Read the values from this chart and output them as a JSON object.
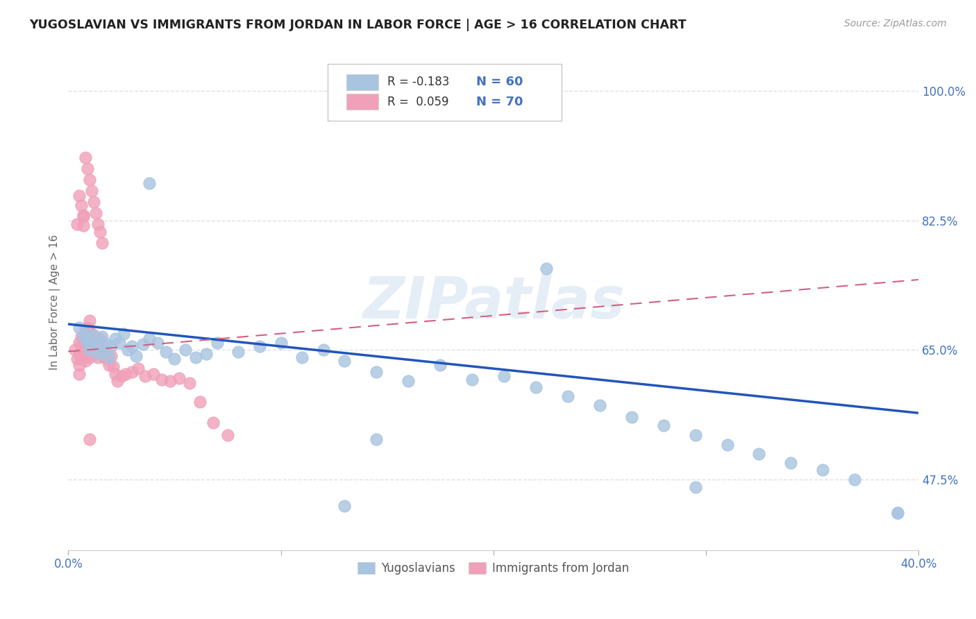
{
  "title": "YUGOSLAVIAN VS IMMIGRANTS FROM JORDAN IN LABOR FORCE | AGE > 16 CORRELATION CHART",
  "source_text": "Source: ZipAtlas.com",
  "ylabel": "In Labor Force | Age > 16",
  "xlim": [
    0.0,
    0.4
  ],
  "ylim": [
    0.38,
    1.05
  ],
  "yticks": [
    0.475,
    0.65,
    0.825,
    1.0
  ],
  "yticklabels": [
    "47.5%",
    "65.0%",
    "82.5%",
    "100.0%"
  ],
  "blue_color": "#a8c4e0",
  "pink_color": "#f0a0b8",
  "blue_line_color": "#2255bb",
  "pink_line_color": "#d06080",
  "watermark": "ZIPatlas",
  "background_color": "#ffffff",
  "grid_color": "#e0e0e0",
  "blue_trend": [
    0.685,
    0.565
  ],
  "pink_trend": [
    0.648,
    0.745
  ],
  "blue_x": [
    0.005,
    0.007,
    0.008,
    0.009,
    0.01,
    0.01,
    0.011,
    0.012,
    0.013,
    0.014,
    0.015,
    0.016,
    0.017,
    0.018,
    0.019,
    0.02,
    0.022,
    0.024,
    0.026,
    0.028,
    0.03,
    0.032,
    0.035,
    0.038,
    0.042,
    0.046,
    0.05,
    0.055,
    0.06,
    0.065,
    0.07,
    0.08,
    0.09,
    0.1,
    0.11,
    0.12,
    0.13,
    0.145,
    0.16,
    0.175,
    0.19,
    0.205,
    0.22,
    0.235,
    0.25,
    0.265,
    0.28,
    0.295,
    0.31,
    0.325,
    0.34,
    0.355,
    0.37,
    0.038,
    0.13,
    0.225,
    0.145,
    0.39,
    0.39,
    0.295
  ],
  "blue_y": [
    0.68,
    0.668,
    0.672,
    0.66,
    0.665,
    0.65,
    0.658,
    0.67,
    0.655,
    0.645,
    0.66,
    0.668,
    0.648,
    0.658,
    0.64,
    0.655,
    0.665,
    0.66,
    0.672,
    0.65,
    0.655,
    0.642,
    0.658,
    0.665,
    0.66,
    0.648,
    0.638,
    0.65,
    0.64,
    0.645,
    0.66,
    0.648,
    0.655,
    0.66,
    0.64,
    0.65,
    0.635,
    0.62,
    0.608,
    0.63,
    0.61,
    0.615,
    0.6,
    0.588,
    0.575,
    0.56,
    0.548,
    0.535,
    0.522,
    0.51,
    0.498,
    0.488,
    0.475,
    0.875,
    0.44,
    0.76,
    0.53,
    0.43,
    0.43,
    0.465
  ],
  "pink_x": [
    0.003,
    0.004,
    0.004,
    0.005,
    0.005,
    0.005,
    0.005,
    0.006,
    0.006,
    0.006,
    0.007,
    0.007,
    0.007,
    0.007,
    0.007,
    0.008,
    0.008,
    0.008,
    0.008,
    0.009,
    0.009,
    0.009,
    0.01,
    0.01,
    0.01,
    0.01,
    0.011,
    0.011,
    0.012,
    0.012,
    0.013,
    0.013,
    0.014,
    0.014,
    0.015,
    0.015,
    0.016,
    0.017,
    0.018,
    0.019,
    0.02,
    0.021,
    0.022,
    0.023,
    0.025,
    0.027,
    0.03,
    0.033,
    0.036,
    0.04,
    0.044,
    0.048,
    0.052,
    0.057,
    0.062,
    0.068,
    0.075,
    0.005,
    0.006,
    0.007,
    0.008,
    0.009,
    0.01,
    0.011,
    0.012,
    0.013,
    0.014,
    0.015,
    0.016,
    0.01
  ],
  "pink_y": [
    0.65,
    0.638,
    0.82,
    0.66,
    0.645,
    0.63,
    0.618,
    0.668,
    0.655,
    0.64,
    0.83,
    0.818,
    0.668,
    0.655,
    0.64,
    0.678,
    0.665,
    0.65,
    0.635,
    0.68,
    0.665,
    0.648,
    0.69,
    0.675,
    0.658,
    0.64,
    0.672,
    0.658,
    0.662,
    0.648,
    0.66,
    0.645,
    0.655,
    0.64,
    0.665,
    0.65,
    0.648,
    0.64,
    0.638,
    0.63,
    0.642,
    0.628,
    0.618,
    0.608,
    0.615,
    0.618,
    0.62,
    0.625,
    0.615,
    0.618,
    0.61,
    0.608,
    0.612,
    0.605,
    0.58,
    0.552,
    0.535,
    0.858,
    0.845,
    0.832,
    0.91,
    0.895,
    0.88,
    0.865,
    0.85,
    0.835,
    0.82,
    0.81,
    0.795,
    0.53
  ]
}
